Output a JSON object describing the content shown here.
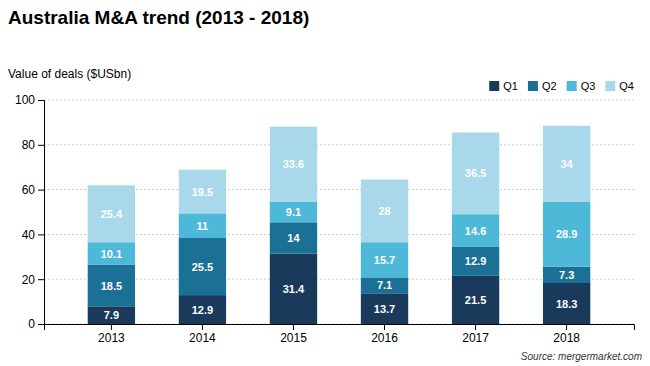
{
  "chart_data": {
    "type": "bar",
    "stacked": true,
    "title": "Australia M&A trend (2013 - 2018)",
    "subtitle": "Value of deals ($USbn)",
    "source": "Source: mergermarket.com",
    "categories": [
      "2013",
      "2014",
      "2015",
      "2016",
      "2017",
      "2018"
    ],
    "series": [
      {
        "name": "Q1",
        "color": "#1a3a5c",
        "values": [
          7.9,
          12.9,
          31.4,
          13.7,
          21.5,
          18.3
        ]
      },
      {
        "name": "Q2",
        "color": "#1b7096",
        "values": [
          18.5,
          25.5,
          14.0,
          7.1,
          12.9,
          7.3
        ]
      },
      {
        "name": "Q3",
        "color": "#4db8d8",
        "values": [
          10.1,
          11.0,
          9.1,
          15.7,
          14.6,
          28.9
        ]
      },
      {
        "name": "Q4",
        "color": "#a8d8ea",
        "values": [
          25.4,
          19.5,
          33.6,
          28.0,
          36.5,
          34.0
        ]
      }
    ],
    "ylim": [
      0,
      100
    ],
    "yticks": [
      0,
      20,
      40,
      60,
      80,
      100
    ],
    "grid": true,
    "legend": "upper right",
    "data_labels": true
  }
}
